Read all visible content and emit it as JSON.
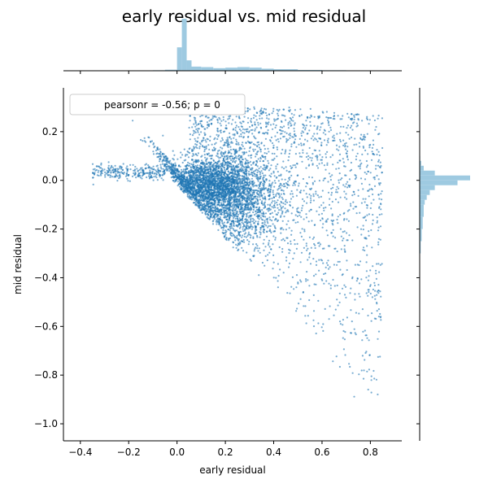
{
  "chart_data": {
    "type": "scatter",
    "title": "early residual vs. mid residual",
    "xlabel": "early residual",
    "ylabel": "mid residual",
    "xlim": [
      -0.47,
      0.93
    ],
    "ylim": [
      -1.07,
      0.38
    ],
    "xticks": [
      -0.4,
      -0.2,
      0.0,
      0.2,
      0.4,
      0.6,
      0.8
    ],
    "xtick_labels": [
      "−0.4",
      "−0.2",
      "0.0",
      "0.2",
      "0.4",
      "0.6",
      "0.8"
    ],
    "yticks": [
      0.2,
      0.0,
      -0.2,
      -0.4,
      -0.6,
      -0.8,
      -1.0
    ],
    "ytick_labels": [
      "0.2",
      "0.0",
      "−0.2",
      "−0.4",
      "−0.6",
      "−0.8",
      "−1.0"
    ],
    "legend": {
      "text": "pearsonr = -0.56; p = 0",
      "placement": "top-left"
    },
    "marginal_x_histogram": {
      "bin_edges": [
        -0.1,
        -0.05,
        0.0,
        0.02,
        0.04,
        0.06,
        0.1,
        0.15,
        0.2,
        0.25,
        0.3,
        0.35,
        0.4,
        0.5,
        0.6,
        0.7,
        0.8
      ],
      "relative_counts": [
        0.01,
        0.02,
        0.45,
        1.0,
        0.2,
        0.08,
        0.07,
        0.05,
        0.06,
        0.07,
        0.06,
        0.04,
        0.03,
        0.015,
        0.01,
        0.005
      ]
    },
    "marginal_y_histogram": {
      "bin_edges": [
        -0.3,
        -0.25,
        -0.2,
        -0.15,
        -0.1,
        -0.08,
        -0.06,
        -0.04,
        -0.02,
        0.0,
        0.02,
        0.04,
        0.06,
        0.08,
        0.1
      ],
      "relative_counts": [
        0.02,
        0.04,
        0.06,
        0.08,
        0.1,
        0.14,
        0.2,
        0.3,
        0.75,
        1.0,
        0.3,
        0.08,
        0.03,
        0.01
      ]
    },
    "point_clusters": [
      {
        "region": "tail",
        "x_range": [
          -0.35,
          -0.05
        ],
        "y_center": 0.035,
        "y_spread": 0.025,
        "n": 260
      },
      {
        "region": "dense-core",
        "x_center": 0.12,
        "x_spread": 0.09,
        "y_center": -0.03,
        "y_spread": 0.06,
        "n": 2200
      },
      {
        "region": "mid-cloud",
        "x_center": 0.25,
        "x_spread": 0.08,
        "y_center": -0.08,
        "y_spread": 0.1,
        "n": 1500
      },
      {
        "region": "lower-fan",
        "x_range": [
          0.05,
          0.85
        ],
        "y_range": [
          -1.0,
          0.3
        ],
        "n": 1800
      }
    ],
    "point_color": "#1f77b4",
    "hist_color": "#9ecae1",
    "grid": false
  }
}
